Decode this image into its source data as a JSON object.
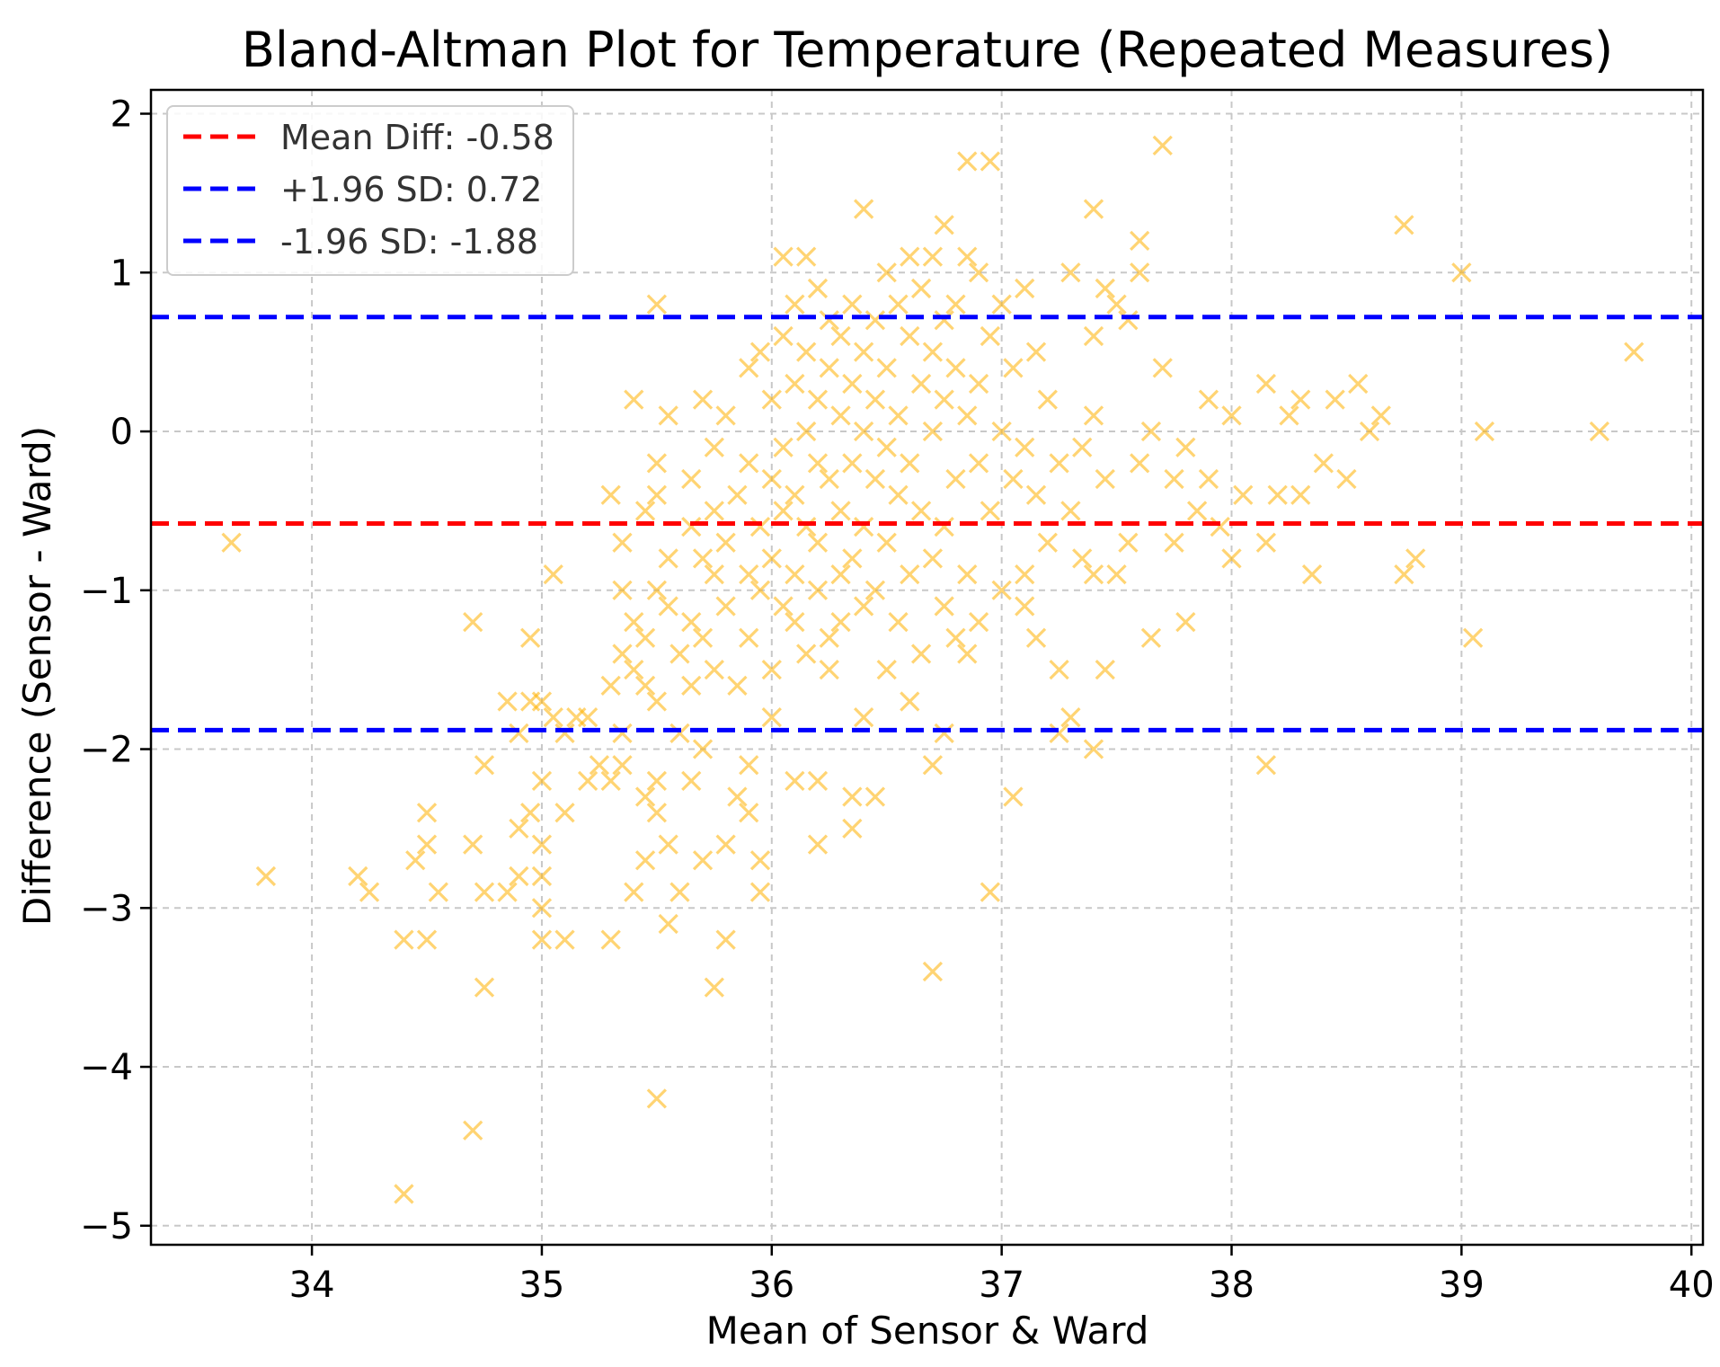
{
  "chart_data": {
    "type": "scatter",
    "title": "Bland-Altman Plot for Temperature (Repeated Measures)",
    "xlabel": "Mean of Sensor & Ward",
    "ylabel": "Difference (Sensor - Ward)",
    "xlim": [
      33.3,
      40.05
    ],
    "ylim": [
      -5.12,
      2.15
    ],
    "xticks": [
      34,
      35,
      36,
      37,
      38,
      39,
      40
    ],
    "yticks": [
      -5,
      -4,
      -3,
      -2,
      -1,
      0,
      1,
      2
    ],
    "xtick_labels": [
      "34",
      "35",
      "36",
      "37",
      "38",
      "39",
      "40"
    ],
    "ytick_labels": [
      "−5",
      "−4",
      "−3",
      "−2",
      "−1",
      "0",
      "1",
      "2"
    ],
    "grid": true,
    "legend_position": "top-left",
    "marker": "x",
    "marker_color": "#FFB000",
    "hlines": [
      {
        "name": "mean",
        "label": "Mean Diff: -0.58",
        "y": -0.58,
        "color": "#ff0000"
      },
      {
        "name": "upper-loa",
        "label": "+1.96 SD: 0.72",
        "y": 0.72,
        "color": "#0000ff"
      },
      {
        "name": "lower-loa",
        "label": "-1.96 SD: -1.88",
        "y": -1.88,
        "color": "#0000ff"
      }
    ],
    "points": [
      [
        33.65,
        -0.7
      ],
      [
        33.8,
        -2.8
      ],
      [
        34.2,
        -2.8
      ],
      [
        34.25,
        -2.9
      ],
      [
        34.4,
        -3.2
      ],
      [
        34.4,
        -4.8
      ],
      [
        34.45,
        -2.7
      ],
      [
        34.5,
        -3.2
      ],
      [
        34.5,
        -2.6
      ],
      [
        34.5,
        -2.4
      ],
      [
        34.55,
        -2.9
      ],
      [
        34.7,
        -1.2
      ],
      [
        34.7,
        -2.6
      ],
      [
        34.7,
        -4.4
      ],
      [
        34.75,
        -2.1
      ],
      [
        34.75,
        -2.9
      ],
      [
        34.75,
        -3.5
      ],
      [
        34.85,
        -2.9
      ],
      [
        34.85,
        -1.7
      ],
      [
        34.9,
        -1.9
      ],
      [
        34.9,
        -2.5
      ],
      [
        34.9,
        -2.8
      ],
      [
        34.95,
        -1.3
      ],
      [
        34.95,
        -1.7
      ],
      [
        34.95,
        -2.4
      ],
      [
        35.0,
        -1.7
      ],
      [
        35.0,
        -2.2
      ],
      [
        35.0,
        -2.6
      ],
      [
        35.0,
        -3.0
      ],
      [
        35.0,
        -3.2
      ],
      [
        35.0,
        -2.8
      ],
      [
        35.05,
        -0.9
      ],
      [
        35.05,
        -1.8
      ],
      [
        35.1,
        -1.9
      ],
      [
        35.1,
        -2.4
      ],
      [
        35.1,
        -3.2
      ],
      [
        35.15,
        -1.8
      ],
      [
        35.2,
        -1.8
      ],
      [
        35.2,
        -2.2
      ],
      [
        35.25,
        -2.1
      ],
      [
        35.3,
        -1.6
      ],
      [
        35.3,
        -2.2
      ],
      [
        35.3,
        -3.2
      ],
      [
        35.3,
        -0.4
      ],
      [
        35.35,
        -1.4
      ],
      [
        35.35,
        -1.9
      ],
      [
        35.35,
        -2.1
      ],
      [
        35.35,
        -0.7
      ],
      [
        35.35,
        -1.0
      ],
      [
        35.4,
        -1.5
      ],
      [
        35.4,
        -1.2
      ],
      [
        35.4,
        -2.9
      ],
      [
        35.4,
        0.2
      ],
      [
        35.45,
        -1.3
      ],
      [
        35.45,
        -1.6
      ],
      [
        35.45,
        -2.3
      ],
      [
        35.45,
        -2.7
      ],
      [
        35.45,
        -0.5
      ],
      [
        35.5,
        -0.2
      ],
      [
        35.5,
        -0.4
      ],
      [
        35.5,
        -1.0
      ],
      [
        35.5,
        -1.7
      ],
      [
        35.5,
        -2.4
      ],
      [
        35.5,
        -2.2
      ],
      [
        35.5,
        0.8
      ],
      [
        35.5,
        -4.2
      ],
      [
        35.55,
        0.1
      ],
      [
        35.55,
        -0.8
      ],
      [
        35.55,
        -1.1
      ],
      [
        35.55,
        -2.6
      ],
      [
        35.55,
        -3.1
      ],
      [
        35.6,
        -1.4
      ],
      [
        35.6,
        -1.9
      ],
      [
        35.6,
        -2.9
      ],
      [
        35.65,
        -0.3
      ],
      [
        35.65,
        -0.6
      ],
      [
        35.65,
        -1.2
      ],
      [
        35.65,
        -1.6
      ],
      [
        35.65,
        -2.2
      ],
      [
        35.7,
        0.2
      ],
      [
        35.7,
        -0.8
      ],
      [
        35.7,
        -1.3
      ],
      [
        35.7,
        -2.0
      ],
      [
        35.7,
        -2.7
      ],
      [
        35.75,
        -0.1
      ],
      [
        35.75,
        -0.5
      ],
      [
        35.75,
        -0.9
      ],
      [
        35.75,
        -1.5
      ],
      [
        35.75,
        -3.5
      ],
      [
        35.8,
        0.1
      ],
      [
        35.8,
        -0.7
      ],
      [
        35.8,
        -1.1
      ],
      [
        35.8,
        -2.6
      ],
      [
        35.8,
        -3.2
      ],
      [
        35.85,
        -0.4
      ],
      [
        35.85,
        -1.6
      ],
      [
        35.85,
        -2.3
      ],
      [
        35.9,
        0.4
      ],
      [
        35.9,
        -0.2
      ],
      [
        35.9,
        -0.9
      ],
      [
        35.9,
        -1.3
      ],
      [
        35.9,
        -2.1
      ],
      [
        35.9,
        -2.4
      ],
      [
        35.95,
        0.5
      ],
      [
        35.95,
        -0.6
      ],
      [
        35.95,
        -1.0
      ],
      [
        35.95,
        -2.7
      ],
      [
        35.95,
        -2.9
      ],
      [
        36.0,
        0.2
      ],
      [
        36.0,
        -0.3
      ],
      [
        36.0,
        -0.8
      ],
      [
        36.0,
        -1.5
      ],
      [
        36.0,
        -1.8
      ],
      [
        36.05,
        1.1
      ],
      [
        36.05,
        0.6
      ],
      [
        36.05,
        -0.1
      ],
      [
        36.05,
        -0.5
      ],
      [
        36.05,
        -1.1
      ],
      [
        36.1,
        0.8
      ],
      [
        36.1,
        0.3
      ],
      [
        36.1,
        -0.4
      ],
      [
        36.1,
        -0.9
      ],
      [
        36.1,
        -1.2
      ],
      [
        36.1,
        -2.2
      ],
      [
        36.15,
        1.1
      ],
      [
        36.15,
        0.5
      ],
      [
        36.15,
        0.0
      ],
      [
        36.15,
        -0.6
      ],
      [
        36.15,
        -1.4
      ],
      [
        36.2,
        0.9
      ],
      [
        36.2,
        0.2
      ],
      [
        36.2,
        -0.2
      ],
      [
        36.2,
        -0.7
      ],
      [
        36.2,
        -1.0
      ],
      [
        36.2,
        -2.2
      ],
      [
        36.2,
        -2.6
      ],
      [
        36.25,
        0.7
      ],
      [
        36.25,
        0.4
      ],
      [
        36.25,
        -0.3
      ],
      [
        36.25,
        -1.3
      ],
      [
        36.25,
        -1.5
      ],
      [
        36.3,
        0.6
      ],
      [
        36.3,
        0.1
      ],
      [
        36.3,
        -0.5
      ],
      [
        36.3,
        -0.9
      ],
      [
        36.3,
        -1.2
      ],
      [
        36.35,
        0.8
      ],
      [
        36.35,
        0.3
      ],
      [
        36.35,
        -0.2
      ],
      [
        36.35,
        -0.8
      ],
      [
        36.35,
        -2.3
      ],
      [
        36.35,
        -2.5
      ],
      [
        36.4,
        1.4
      ],
      [
        36.4,
        0.5
      ],
      [
        36.4,
        0.0
      ],
      [
        36.4,
        -0.6
      ],
      [
        36.4,
        -1.1
      ],
      [
        36.4,
        -1.8
      ],
      [
        36.45,
        0.7
      ],
      [
        36.45,
        0.2
      ],
      [
        36.45,
        -0.3
      ],
      [
        36.45,
        -1.0
      ],
      [
        36.45,
        -2.3
      ],
      [
        36.5,
        1.0
      ],
      [
        36.5,
        0.4
      ],
      [
        36.5,
        -0.1
      ],
      [
        36.5,
        -0.7
      ],
      [
        36.5,
        -1.5
      ],
      [
        36.55,
        0.8
      ],
      [
        36.55,
        0.1
      ],
      [
        36.55,
        -0.4
      ],
      [
        36.55,
        -1.2
      ],
      [
        36.6,
        1.1
      ],
      [
        36.6,
        0.6
      ],
      [
        36.6,
        -0.2
      ],
      [
        36.6,
        -0.9
      ],
      [
        36.6,
        -1.7
      ],
      [
        36.65,
        0.9
      ],
      [
        36.65,
        0.3
      ],
      [
        36.65,
        -0.5
      ],
      [
        36.65,
        -1.4
      ],
      [
        36.7,
        1.1
      ],
      [
        36.7,
        0.5
      ],
      [
        36.7,
        0.0
      ],
      [
        36.7,
        -0.8
      ],
      [
        36.7,
        -2.1
      ],
      [
        36.7,
        -3.4
      ],
      [
        36.75,
        1.3
      ],
      [
        36.75,
        0.7
      ],
      [
        36.75,
        0.2
      ],
      [
        36.75,
        -0.6
      ],
      [
        36.75,
        -1.1
      ],
      [
        36.75,
        -1.9
      ],
      [
        36.8,
        0.8
      ],
      [
        36.8,
        0.4
      ],
      [
        36.8,
        -0.3
      ],
      [
        36.8,
        -1.3
      ],
      [
        36.85,
        1.7
      ],
      [
        36.85,
        1.1
      ],
      [
        36.85,
        0.1
      ],
      [
        36.85,
        -0.9
      ],
      [
        36.85,
        -1.4
      ],
      [
        36.9,
        1.0
      ],
      [
        36.9,
        0.3
      ],
      [
        36.9,
        -0.2
      ],
      [
        36.9,
        -1.2
      ],
      [
        36.95,
        1.7
      ],
      [
        36.95,
        0.6
      ],
      [
        36.95,
        -0.5
      ],
      [
        36.95,
        -2.9
      ],
      [
        37.0,
        0.8
      ],
      [
        37.0,
        0.0
      ],
      [
        37.0,
        -1.0
      ],
      [
        37.05,
        0.4
      ],
      [
        37.05,
        -0.3
      ],
      [
        37.05,
        -2.3
      ],
      [
        37.1,
        0.9
      ],
      [
        37.1,
        -0.1
      ],
      [
        37.1,
        -0.9
      ],
      [
        37.1,
        -1.1
      ],
      [
        37.15,
        0.5
      ],
      [
        37.15,
        -0.4
      ],
      [
        37.15,
        -1.3
      ],
      [
        37.2,
        0.2
      ],
      [
        37.2,
        -0.7
      ],
      [
        37.25,
        -0.2
      ],
      [
        37.25,
        -1.5
      ],
      [
        37.25,
        -1.9
      ],
      [
        37.3,
        1.0
      ],
      [
        37.3,
        -0.5
      ],
      [
        37.3,
        -1.8
      ],
      [
        37.35,
        -0.1
      ],
      [
        37.35,
        -0.8
      ],
      [
        37.4,
        1.4
      ],
      [
        37.4,
        0.6
      ],
      [
        37.4,
        0.1
      ],
      [
        37.4,
        -0.9
      ],
      [
        37.4,
        -2.0
      ],
      [
        37.45,
        0.9
      ],
      [
        37.45,
        -0.3
      ],
      [
        37.45,
        -1.5
      ],
      [
        37.5,
        0.8
      ],
      [
        37.5,
        -0.9
      ],
      [
        37.55,
        0.7
      ],
      [
        37.55,
        -0.7
      ],
      [
        37.6,
        1.2
      ],
      [
        37.6,
        1.0
      ],
      [
        37.6,
        -0.2
      ],
      [
        37.65,
        0.0
      ],
      [
        37.65,
        -1.3
      ],
      [
        37.7,
        1.8
      ],
      [
        37.7,
        0.4
      ],
      [
        37.75,
        -0.3
      ],
      [
        37.75,
        -0.7
      ],
      [
        37.8,
        -0.1
      ],
      [
        37.8,
        -1.2
      ],
      [
        37.85,
        -0.5
      ],
      [
        37.9,
        0.2
      ],
      [
        37.9,
        -0.3
      ],
      [
        37.95,
        -0.6
      ],
      [
        38.0,
        0.1
      ],
      [
        38.0,
        -0.8
      ],
      [
        38.05,
        -0.4
      ],
      [
        38.15,
        0.3
      ],
      [
        38.15,
        -0.7
      ],
      [
        38.15,
        -2.1
      ],
      [
        38.2,
        -0.4
      ],
      [
        38.25,
        0.1
      ],
      [
        38.3,
        0.2
      ],
      [
        38.3,
        -0.4
      ],
      [
        38.35,
        -0.9
      ],
      [
        38.4,
        -0.2
      ],
      [
        38.45,
        0.2
      ],
      [
        38.5,
        -0.3
      ],
      [
        38.55,
        0.3
      ],
      [
        38.6,
        0.0
      ],
      [
        38.65,
        0.1
      ],
      [
        38.75,
        1.3
      ],
      [
        38.75,
        -0.9
      ],
      [
        38.8,
        -0.8
      ],
      [
        39.0,
        1.0
      ],
      [
        39.05,
        -1.3
      ],
      [
        39.1,
        0.0
      ],
      [
        39.6,
        0.0
      ],
      [
        39.75,
        0.5
      ]
    ]
  }
}
